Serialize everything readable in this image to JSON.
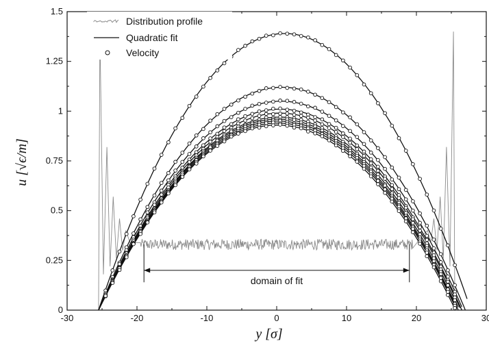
{
  "chart_data": {
    "type": "line",
    "title": "",
    "xlabel": "y [σ]",
    "ylabel": "u [√ϵ/m]",
    "xlim": [
      -30,
      30
    ],
    "ylim": [
      0,
      1.5
    ],
    "x_ticks": [
      "-30",
      "-20",
      "-10",
      "0",
      "10",
      "20",
      "30"
    ],
    "y_ticks": [
      "0",
      "0.25",
      "0.5",
      "0.75",
      "1",
      "1.25",
      "1.5"
    ],
    "grid": false,
    "legend_position": "top-left",
    "legend": [
      {
        "label": "Distribution profile",
        "style": "gray-noisy-line"
      },
      {
        "label": "Quadratic fit",
        "style": "solid-line"
      },
      {
        "label": "Velocity",
        "style": "open-circle"
      }
    ],
    "annotation": {
      "text": "domain of fit",
      "x_range": [
        -19,
        19
      ],
      "y": 0.2
    },
    "fit_curves": [
      {
        "peak_x": 6.0,
        "peak_u": 1.39,
        "zero_left": -25.5,
        "zero_right": 27.8
      },
      {
        "peak_x": 2.5,
        "peak_u": 1.12,
        "zero_left": -25.5,
        "zero_right": 27.0
      },
      {
        "peak_x": 1.8,
        "peak_u": 1.05,
        "zero_left": -25.5,
        "zero_right": 26.7
      },
      {
        "peak_x": 1.4,
        "peak_u": 1.01,
        "zero_left": -25.5,
        "zero_right": 26.5
      },
      {
        "peak_x": 1.2,
        "peak_u": 0.99,
        "zero_left": -25.5,
        "zero_right": 26.4
      },
      {
        "peak_x": 1.0,
        "peak_u": 0.97,
        "zero_left": -25.5,
        "zero_right": 26.2
      },
      {
        "peak_x": 0.9,
        "peak_u": 0.96,
        "zero_left": -25.5,
        "zero_right": 26.0
      },
      {
        "peak_x": 0.8,
        "peak_u": 0.95,
        "zero_left": -25.5,
        "zero_right": 25.9
      },
      {
        "peak_x": 0.6,
        "peak_u": 0.94,
        "zero_left": -25.5,
        "zero_right": 25.8
      },
      {
        "peak_x": 0.5,
        "peak_u": 0.93,
        "zero_left": -25.5,
        "zero_right": 25.6
      }
    ],
    "distribution_profile": {
      "bulk_level": 0.33,
      "bulk_range": [
        -19.5,
        19.5
      ],
      "wall_left": -25.5,
      "wall_right": 25.5,
      "edge_peaks": [
        {
          "x": -25.3,
          "u": 1.4
        },
        {
          "x": -24.3,
          "u": 0.82
        },
        {
          "x": -23.4,
          "u": 0.57
        },
        {
          "x": -22.5,
          "u": 0.46
        },
        {
          "x": -21.6,
          "u": 0.4
        },
        {
          "x": 25.3,
          "u": 1.4
        },
        {
          "x": 24.3,
          "u": 0.82
        },
        {
          "x": 23.4,
          "u": 0.57
        },
        {
          "x": 22.5,
          "u": 0.46
        },
        {
          "x": 21.6,
          "u": 0.4
        }
      ]
    }
  }
}
